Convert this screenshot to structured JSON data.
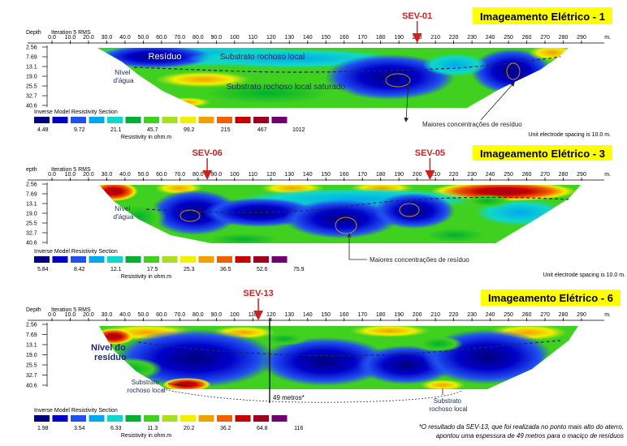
{
  "panels": [
    {
      "title": "Imageamento Elétrico - 1",
      "depth_label": "Depth",
      "iteration_label": "Iteration 5 RMS",
      "x_ticks": [
        "0.0",
        "10.0",
        "20.0",
        "30.0",
        "40.0",
        "50.0",
        "60.0",
        "70.0",
        "80.0",
        "90.0",
        "100",
        "110",
        "120",
        "130",
        "140",
        "150",
        "160",
        "170",
        "180",
        "190",
        "200",
        "210",
        "220",
        "230",
        "240",
        "250",
        "260",
        "270",
        "280",
        "290"
      ],
      "x_unit": "m.",
      "depth_ticks": [
        "2.56",
        "7.69",
        "13.1",
        "19.0",
        "25.5",
        "32.7",
        "40.6"
      ],
      "sevs": [
        {
          "label": "SEV-01",
          "x": 200
        }
      ],
      "annotations": [
        "Resíduo",
        "Substrato rochoso local",
        "Nível d'água",
        "Substrato rochoso local saturado"
      ],
      "callout": "Maiores concentrações de resíduo",
      "legend_title": "Inverse Model Resistivity Section",
      "legend_values": [
        "4.48",
        "9.72",
        "21.1",
        "45.7",
        "99.2",
        "215",
        "467",
        "1012"
      ],
      "legend_unit": "Resistivity in ohm.m",
      "spacing_note": "Unit electrode spacing is 10.0 m."
    },
    {
      "title": "Imageamento Elétrico - 3",
      "depth_label": "epth",
      "iteration_label": "Iteration 5 RMS",
      "x_ticks": [
        "0.0",
        "10.0",
        "20.0",
        "30.0",
        "40.0",
        "50.0",
        "60.0",
        "70.0",
        "80.0",
        "90.0",
        "100",
        "110",
        "120",
        "130",
        "140",
        "150",
        "160",
        "170",
        "180",
        "190",
        "200",
        "210",
        "220",
        "230",
        "240",
        "250",
        "260",
        "270",
        "280",
        "290"
      ],
      "x_unit": "m.",
      "depth_ticks": [
        "2.56",
        "7.69",
        "13.1",
        "19.0",
        "25.5",
        "32.7",
        "40.6"
      ],
      "sevs": [
        {
          "label": "SEV-06",
          "x": 85
        },
        {
          "label": "SEV-05",
          "x": 207
        }
      ],
      "annotations": [
        "Nível d'água"
      ],
      "callout": "Maiores concentrações de resíduo",
      "legend_title": "Inverse Model Resistivity Section",
      "legend_values": [
        "5.84",
        "8.42",
        "12.1",
        "17.5",
        "25.3",
        "36.5",
        "52.6",
        "75.9"
      ],
      "legend_unit": "Resistivity in ohm.m",
      "spacing_note": "Unit electrode spacing is 10.0 m."
    },
    {
      "title": "Imageamento Elétrico - 6",
      "depth_label": "Depth",
      "iteration_label": "Iteration 5 RMS",
      "x_ticks": [
        "0.0",
        "10.0",
        "20.0",
        "30.0",
        "40.0",
        "50.0",
        "60.0",
        "70.0",
        "80.0",
        "90.0",
        "100",
        "110",
        "120",
        "130",
        "140",
        "150",
        "160",
        "170",
        "180",
        "190",
        "200",
        "210",
        "220",
        "230",
        "240",
        "250",
        "260",
        "270",
        "280",
        "290"
      ],
      "x_unit": "m.",
      "depth_ticks": [
        "2.56",
        "7.69",
        "13.1",
        "19.0",
        "25.5",
        "32.7",
        "40.6"
      ],
      "sevs": [
        {
          "label": "SEV-13",
          "x": 113
        }
      ],
      "annotations": [
        "Nível do resíduo",
        "Substrato rochoso local",
        "Substrato rochoso local"
      ],
      "thickness_label": "49 metros*",
      "legend_title": "Inverse Model Resistivity Section",
      "legend_values": [
        "1.98",
        "3.54",
        "6.33",
        "11.3",
        "20.2",
        "36.2",
        "64.8",
        "116"
      ],
      "legend_unit": "Resistivity in ohm.m",
      "footnote": [
        "*O resultado da SEV-13, que foi realizada no ponto mais alto do aterro,",
        "apontou uma espessura de 49 metros para o maciço de resíduos"
      ]
    }
  ],
  "palette": [
    "#00007a",
    "#0000c8",
    "#2050f0",
    "#00a8f0",
    "#10d8c8",
    "#00b030",
    "#40d020",
    "#a8e020",
    "#f0f000",
    "#f0a000",
    "#f06000",
    "#c80000",
    "#a00020",
    "#700070"
  ],
  "chart_data": [
    {
      "type": "heatmap",
      "title": "Imageamento Elétrico - 1",
      "xlabel": "m.",
      "ylabel": "Depth",
      "xlim": [
        0,
        290
      ],
      "depth_levels": [
        2.56,
        7.69,
        13.1,
        19.0,
        25.5,
        32.7,
        40.6
      ],
      "legend_values": [
        4.48,
        9.72,
        21.1,
        45.7,
        99.2,
        215,
        467,
        1012
      ],
      "legend_unit": "ohm.m"
    },
    {
      "type": "heatmap",
      "title": "Imageamento Elétrico - 3",
      "xlabel": "m.",
      "ylabel": "epth",
      "xlim": [
        0,
        290
      ],
      "depth_levels": [
        2.56,
        7.69,
        13.1,
        19.0,
        25.5,
        32.7,
        40.6
      ],
      "legend_values": [
        5.84,
        8.42,
        12.1,
        17.5,
        25.3,
        36.5,
        52.6,
        75.9
      ],
      "legend_unit": "ohm.m"
    },
    {
      "type": "heatmap",
      "title": "Imageamento Elétrico - 6",
      "xlabel": "m.",
      "ylabel": "Depth",
      "xlim": [
        0,
        290
      ],
      "depth_levels": [
        2.56,
        7.69,
        13.1,
        19.0,
        25.5,
        32.7,
        40.6
      ],
      "legend_values": [
        1.98,
        3.54,
        6.33,
        11.3,
        20.2,
        36.2,
        64.8,
        116
      ],
      "legend_unit": "ohm.m"
    }
  ]
}
